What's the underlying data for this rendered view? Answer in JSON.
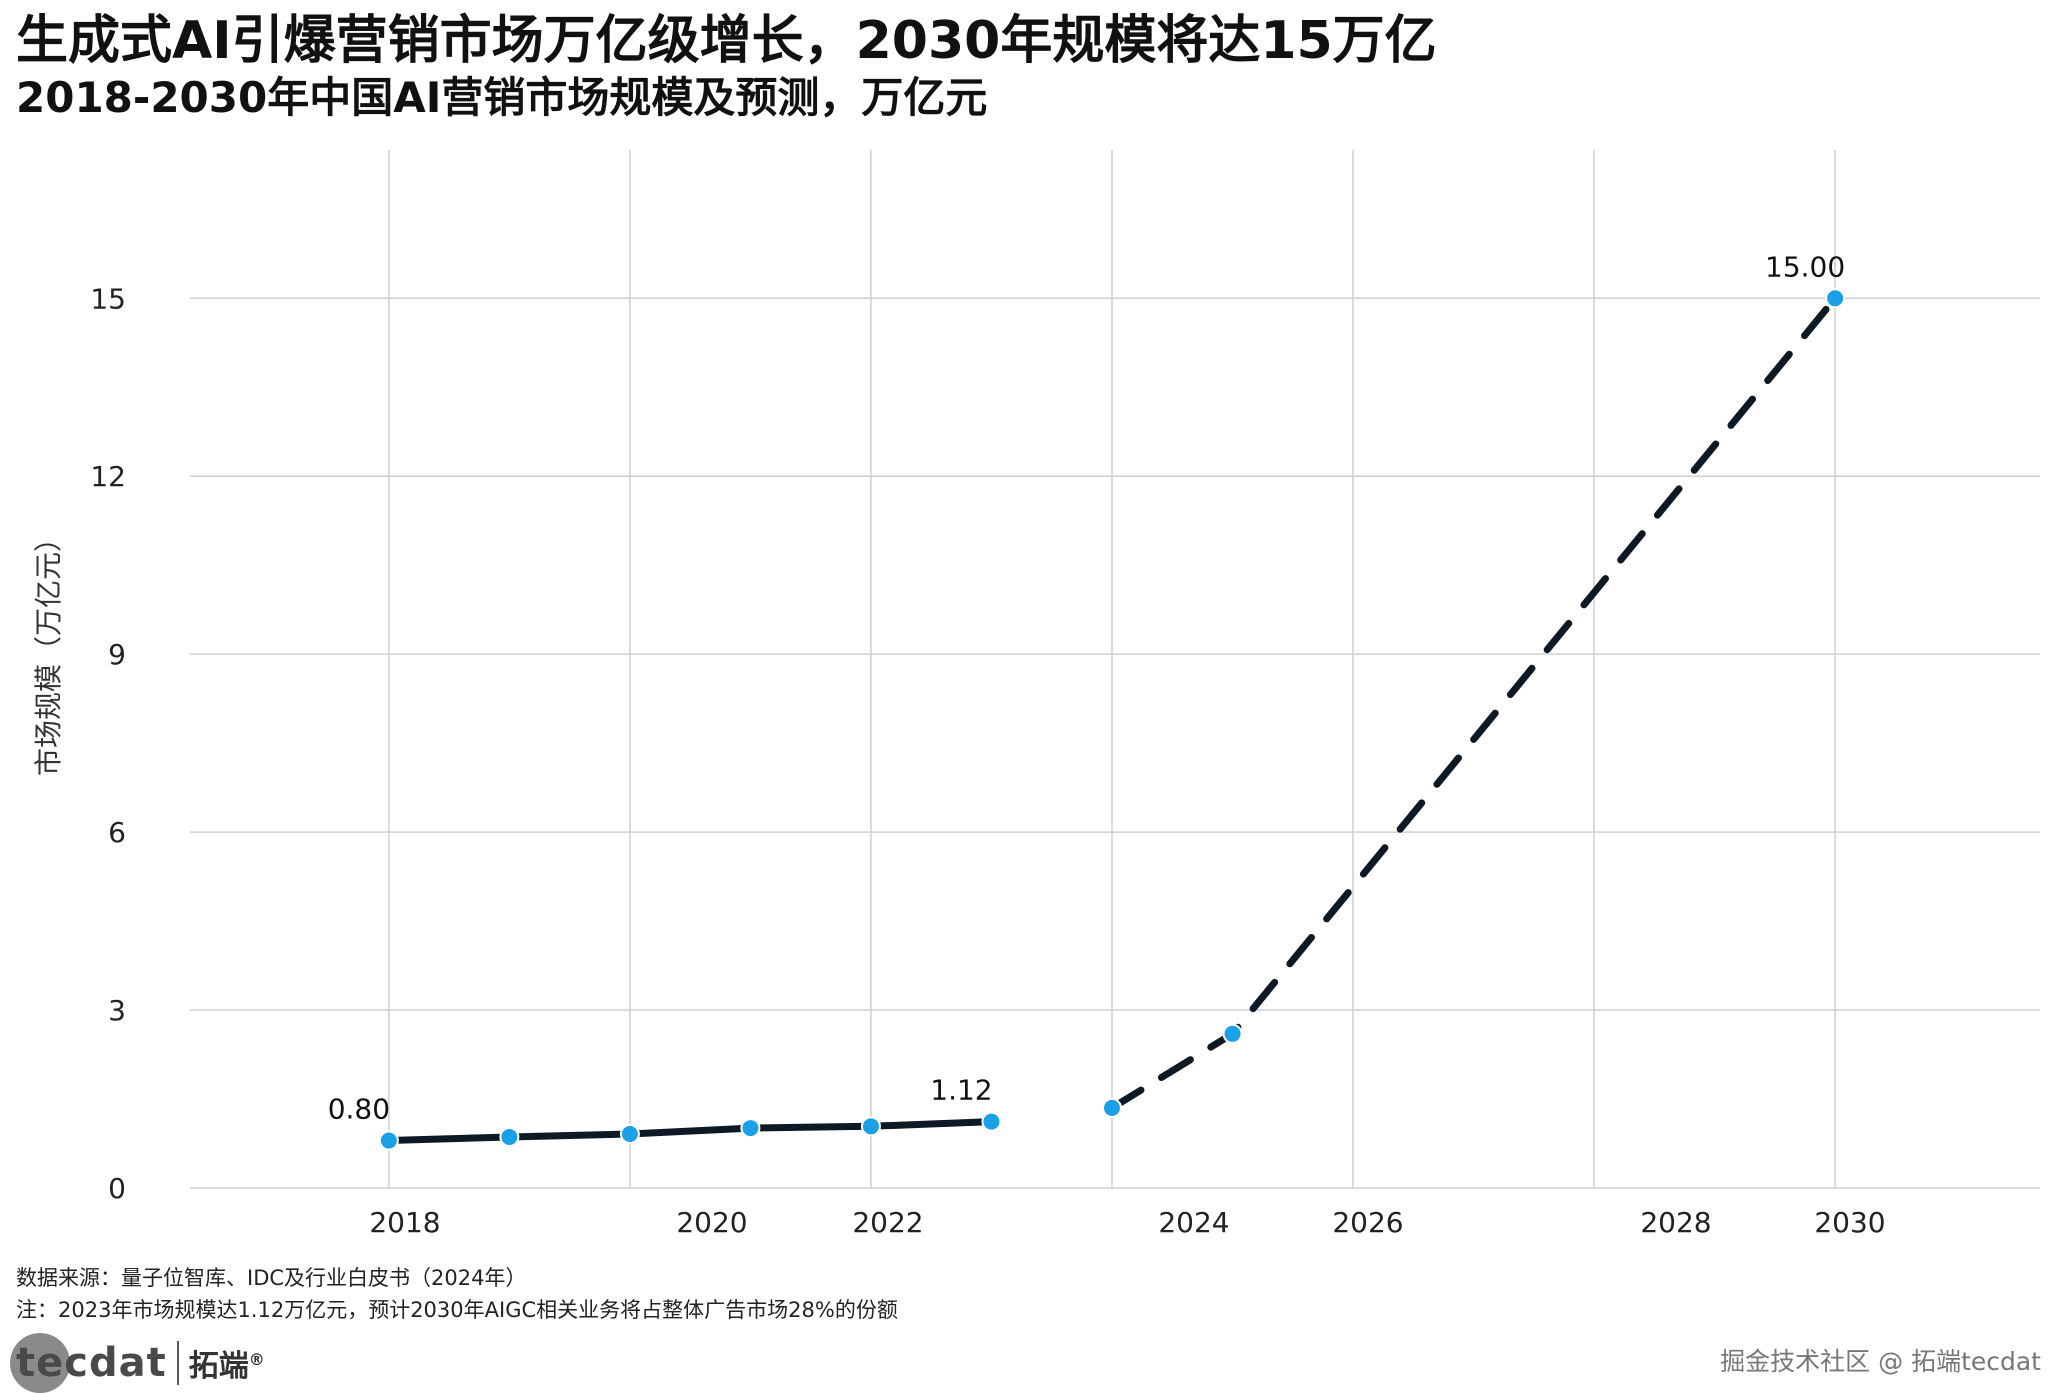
{
  "header": {
    "title": "生成式AI引爆营销市场万亿级增长，2030年规模将达15万亿",
    "subtitle": "2018-2030年中国AI营销市场规模及预测，万亿元"
  },
  "chart_data": {
    "type": "line",
    "title": "生成式AI引爆营销市场万亿级增长，2030年规模将达15万亿",
    "subtitle": "2018-2030年中国AI营销市场规模及预测，万亿元",
    "ylabel": "市场规模（万亿元）",
    "xlabel": "",
    "ylim": [
      0,
      17.5
    ],
    "yticks": [
      0,
      3,
      6,
      9,
      12,
      15
    ],
    "xtick_labels": [
      "2018",
      "2020",
      "2022",
      "2024",
      "2026",
      "2028",
      "2030"
    ],
    "grid": true,
    "series": [
      {
        "style": "solid",
        "color": "#0d1a26",
        "x": [
          2018,
          2019,
          2020,
          2021,
          2022,
          2023
        ],
        "y": [
          0.8,
          0.86,
          0.91,
          1.01,
          1.04,
          1.12
        ]
      },
      {
        "style": "dashed",
        "color": "#0d1a26",
        "x": [
          2024,
          2025,
          2030
        ],
        "y": [
          1.35,
          2.6,
          15.0
        ]
      }
    ],
    "marker_color": "#1aa0e6",
    "data_labels": [
      {
        "x": 2018,
        "y": 0.8,
        "text": "0.80"
      },
      {
        "x": 2023,
        "y": 1.12,
        "text": "1.12"
      },
      {
        "x": 2030,
        "y": 15.0,
        "text": "15.00"
      }
    ]
  },
  "footer": {
    "source": "数据来源：量子位智库、IDC及行业白皮书（2024年）",
    "note": "注：2023年市场规模达1.12万亿元，预计2030年AIGC相关业务将占整体广告市场28%的份额"
  },
  "branding": {
    "logo_text": "tecdat",
    "logo_cn": "拓端",
    "logo_mark": "®",
    "watermark": "掘金技术社区 @ 拓端tecdat"
  }
}
